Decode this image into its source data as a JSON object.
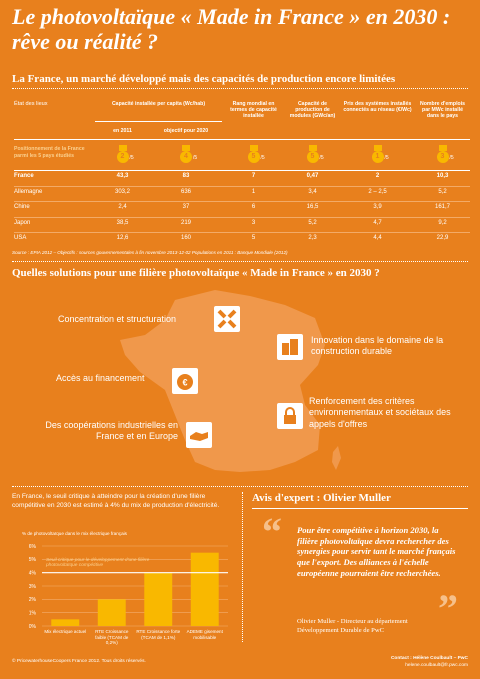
{
  "header": {
    "title": "Le photovoltaïque « Made in France » en 2030 : rêve ou réalité ?"
  },
  "section1": {
    "title": "La France, un marché développé mais des capacités de production encore limitées"
  },
  "table": {
    "state": "État des lieux",
    "capacity": "Capacité installée per capita (Wc/hab)",
    "capacity_sub": [
      "en 2011",
      "objectif pour 2020"
    ],
    "others": [
      "Rang mondial en termes de capacité installée",
      "Capacité de production de modules (GWc/an)",
      "Prix des systèmes installés connectés au réseau (€/Wc)",
      "Nombre d'emplois par MWc installé dans le pays"
    ],
    "ranking": {
      "label": "Positionnement de la France parmi les 5 pays étudiés",
      "ranks": [
        "2",
        "4",
        "5",
        "5",
        "1",
        "3"
      ],
      "suffix": "/5"
    },
    "rows": [
      {
        "country": "France",
        "values": [
          "43,3",
          "83",
          "7",
          "0,47",
          "2",
          "10,3"
        ]
      },
      {
        "country": "Allemagne",
        "values": [
          "303,2",
          "636",
          "1",
          "3,4",
          "2 – 2,5",
          "5,2"
        ]
      },
      {
        "country": "Chine",
        "values": [
          "2,4",
          "37",
          "6",
          "16,5",
          "3,9",
          "161,7"
        ]
      },
      {
        "country": "Japon",
        "values": [
          "38,5",
          "219",
          "3",
          "5,2",
          "4,7",
          "9,2"
        ]
      },
      {
        "country": "USA",
        "values": [
          "12,6",
          "160",
          "5",
          "2,3",
          "4,4",
          "22,9"
        ]
      }
    ],
    "source": "Source : EPIA 2012 – Objectifs : sources gouvernementales à fin novembre 2013-12-02 Populations en 2011 : Banque Mondiale (2012)"
  },
  "section2": {
    "title": "Quelles solutions pour une filière photovoltaïque « Made in France » en 2030 ?",
    "solutions": [
      "Concentration et structuration",
      "Innovation dans le domaine de la construction durable",
      "Accès au financement",
      "Renforcement des critères environnementaux et sociétaux des appels d'offres",
      "Des coopérations industrielles en France et en Europe"
    ]
  },
  "section3": {
    "intro": "En France, le seuil critique à atteindre pour la création d'une filière compétitive en 2030 est estimé à 4% du mix de production d'électricité."
  },
  "chart_data": {
    "type": "bar",
    "ylabel": "% de photovoltaïque dans le mix électrique français",
    "categories": [
      "Mix électrique actuel",
      "RTE Croissance faible (TCAM de 0,2%)",
      "RTE Croissance forte (TCAM de 1,1%)",
      "ADEME gisement mobilisable"
    ],
    "values": [
      0.5,
      2,
      4,
      5.5
    ],
    "color": "#f9b800",
    "ylim": [
      0,
      6
    ],
    "yticks": [
      {
        "value": 0,
        "label": "0%"
      },
      {
        "value": 1,
        "label": "1%"
      },
      {
        "value": 2,
        "label": "2%"
      },
      {
        "value": 3,
        "label": "3%"
      },
      {
        "value": 4,
        "label": "4%"
      },
      {
        "value": 5,
        "label": "5%"
      },
      {
        "value": 6,
        "label": "6%"
      }
    ],
    "grid": true,
    "threshold": 4,
    "threshold_label": "Seuil critique pour le développement d'une filière photovoltaïque compétitive"
  },
  "expert": {
    "title": "Avis d'expert : Olivier Muller",
    "quote": "Pour être compétitive à horizon 2030, la filière photovoltaïque devra rechercher des synergies pour servir tant le marché français que l'export. Des alliances à l'échelle européenne pourraient être recherchées.",
    "author": "Olivier Muller - Directeur au département Développement Durable de PwC"
  },
  "footer": {
    "copyright": "© PricewaterhouseCoopers France 2012. Tous droits réservés.",
    "contact": "Contact : Hélène Coulbault – PwC",
    "email": "helene.coulbault@fr.pwc.com"
  }
}
